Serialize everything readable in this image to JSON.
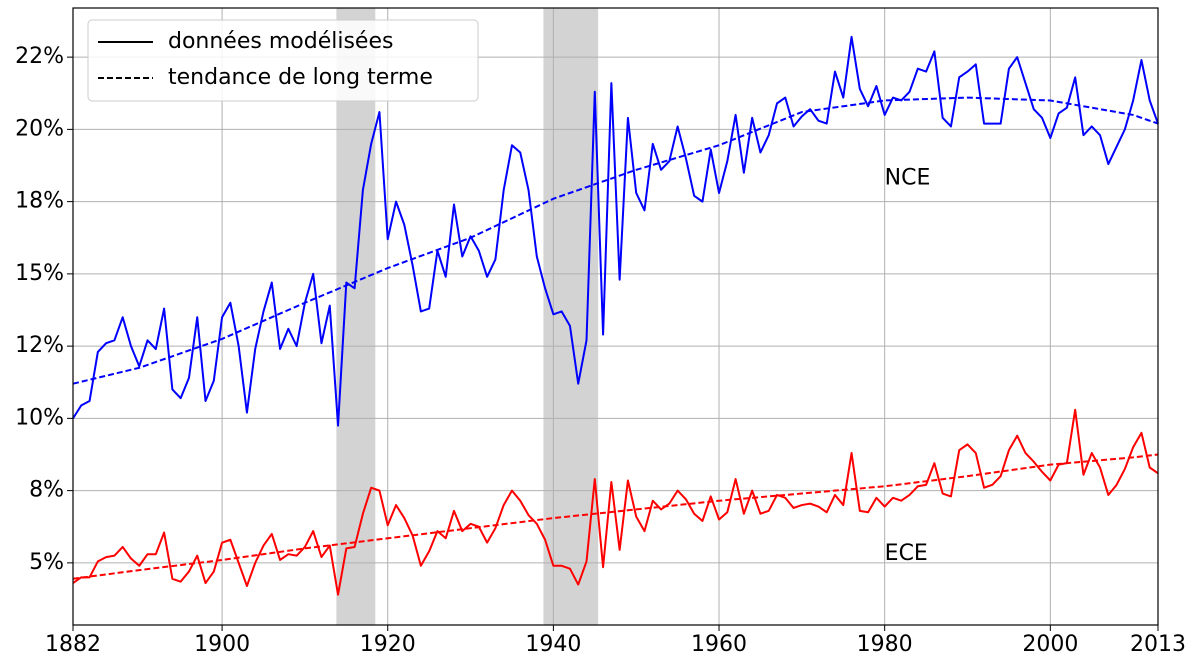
{
  "chart_data": {
    "type": "line",
    "x": [
      1882,
      1883,
      1884,
      1885,
      1886,
      1887,
      1888,
      1889,
      1890,
      1891,
      1892,
      1893,
      1894,
      1895,
      1896,
      1897,
      1898,
      1899,
      1900,
      1901,
      1902,
      1903,
      1904,
      1905,
      1906,
      1907,
      1908,
      1909,
      1910,
      1911,
      1912,
      1913,
      1914,
      1915,
      1916,
      1917,
      1918,
      1919,
      1920,
      1921,
      1922,
      1923,
      1924,
      1925,
      1926,
      1927,
      1928,
      1929,
      1930,
      1931,
      1932,
      1933,
      1934,
      1935,
      1936,
      1937,
      1938,
      1939,
      1940,
      1941,
      1942,
      1943,
      1944,
      1945,
      1946,
      1947,
      1948,
      1949,
      1950,
      1951,
      1952,
      1953,
      1954,
      1955,
      1956,
      1957,
      1958,
      1959,
      1960,
      1961,
      1962,
      1963,
      1964,
      1965,
      1966,
      1967,
      1968,
      1969,
      1970,
      1971,
      1972,
      1973,
      1974,
      1975,
      1976,
      1977,
      1978,
      1979,
      1980,
      1981,
      1982,
      1983,
      1984,
      1985,
      1986,
      1987,
      1988,
      1989,
      1990,
      1991,
      1992,
      1993,
      1994,
      1995,
      1996,
      1997,
      1998,
      1999,
      2000,
      2001,
      2002,
      2003,
      2004,
      2005,
      2006,
      2007,
      2008,
      2009,
      2010,
      2011,
      2012,
      2013
    ],
    "series": [
      {
        "color": "#0000ff",
        "style": "solid",
        "values": [
          10.0,
          10.45,
          10.6,
          12.3,
          12.6,
          12.7,
          13.5,
          12.5,
          11.8,
          12.7,
          12.4,
          13.8,
          11.0,
          10.7,
          11.4,
          13.5,
          10.6,
          11.3,
          13.5,
          14.0,
          12.5,
          10.2,
          12.4,
          13.7,
          14.7,
          12.4,
          13.1,
          12.5,
          14.0,
          15.0,
          12.6,
          13.9,
          9.75,
          14.7,
          14.5,
          17.9,
          19.5,
          20.6,
          16.2,
          17.5,
          16.7,
          15.3,
          13.7,
          13.8,
          15.8,
          14.9,
          17.4,
          15.6,
          16.3,
          15.8,
          14.9,
          15.5,
          17.9,
          19.45,
          19.2,
          17.9,
          15.6,
          14.5,
          13.6,
          13.7,
          13.2,
          11.2,
          12.7,
          21.3,
          12.9,
          21.6,
          14.8,
          20.4,
          17.8,
          17.2,
          19.5,
          18.6,
          18.9,
          20.1,
          19.0,
          17.7,
          17.5,
          19.3,
          17.8,
          18.9,
          20.5,
          18.5,
          20.4,
          19.2,
          19.8,
          20.9,
          21.1,
          20.1,
          20.45,
          20.7,
          20.3,
          20.2,
          22.0,
          21.1,
          23.2,
          21.4,
          20.8,
          21.5,
          20.5,
          21.1,
          21.0,
          21.3,
          22.1,
          22.0,
          22.7,
          20.4,
          20.1,
          21.8,
          22.0,
          22.25,
          20.2,
          20.2,
          20.2,
          22.1,
          22.5,
          21.6,
          20.7,
          20.4,
          19.7,
          20.55,
          20.75,
          21.8,
          19.8,
          20.1,
          19.8,
          18.8,
          19.4,
          20.0,
          21.0,
          22.4,
          21.0,
          20.2
        ]
      },
      {
        "color": "#0000ff",
        "style": "dashed",
        "x": [
          1882,
          1890,
          1900,
          1910,
          1920,
          1930,
          1940,
          1950,
          1960,
          1970,
          1980,
          1990,
          2000,
          2010,
          2013
        ],
        "values": [
          11.2,
          11.75,
          12.75,
          14.0,
          15.2,
          16.25,
          17.6,
          18.6,
          19.45,
          20.6,
          21.0,
          21.1,
          21.0,
          20.5,
          20.2
        ]
      },
      {
        "color": "#ff0000",
        "style": "solid",
        "values": [
          4.3,
          4.5,
          4.5,
          5.05,
          5.2,
          5.25,
          5.55,
          5.15,
          4.9,
          5.3,
          5.3,
          6.05,
          4.45,
          4.35,
          4.7,
          5.25,
          4.3,
          4.7,
          5.7,
          5.8,
          5.0,
          4.2,
          5.0,
          5.6,
          6.0,
          5.1,
          5.3,
          5.25,
          5.55,
          6.1,
          5.2,
          5.6,
          3.9,
          5.5,
          5.55,
          6.7,
          7.6,
          7.5,
          6.3,
          7.0,
          6.55,
          5.95,
          4.9,
          5.4,
          6.1,
          5.85,
          6.8,
          6.1,
          6.35,
          6.25,
          5.7,
          6.2,
          7.0,
          7.5,
          7.15,
          6.65,
          6.35,
          5.8,
          4.9,
          4.9,
          4.8,
          4.25,
          5.05,
          7.9,
          4.85,
          7.8,
          5.45,
          7.85,
          6.6,
          6.1,
          7.15,
          6.85,
          7.05,
          7.5,
          7.2,
          6.7,
          6.45,
          7.3,
          6.5,
          6.75,
          7.9,
          6.7,
          7.5,
          6.7,
          6.8,
          7.35,
          7.25,
          6.9,
          7.0,
          7.05,
          6.95,
          6.75,
          7.35,
          7.0,
          8.8,
          6.8,
          6.75,
          7.25,
          6.95,
          7.25,
          7.15,
          7.35,
          7.65,
          7.7,
          8.45,
          7.4,
          7.3,
          8.9,
          9.1,
          8.8,
          7.6,
          7.7,
          8.0,
          8.9,
          9.4,
          8.8,
          8.5,
          8.15,
          7.85,
          8.4,
          8.45,
          10.3,
          8.05,
          8.8,
          8.3,
          7.35,
          7.7,
          8.25,
          9.0,
          9.5,
          8.3,
          8.1
        ]
      },
      {
        "color": "#ff0000",
        "style": "dashed",
        "x": [
          1882,
          1890,
          1900,
          1910,
          1920,
          1930,
          1940,
          1950,
          1960,
          1970,
          1980,
          1990,
          2000,
          2010,
          2013
        ],
        "values": [
          4.45,
          4.75,
          5.1,
          5.5,
          5.85,
          6.2,
          6.55,
          6.85,
          7.15,
          7.4,
          7.65,
          8.0,
          8.4,
          8.65,
          8.75
        ]
      }
    ],
    "annotations": [
      {
        "text": "NCE",
        "x": 1980,
        "y": 18.3,
        "color": "#0000ff"
      },
      {
        "text": "ECE",
        "x": 1980,
        "y": 5.3,
        "color": "#ff0000"
      }
    ],
    "shaded_spans": [
      [
        1913.8,
        1918.5
      ],
      [
        1938.8,
        1945.4
      ]
    ],
    "shade_color": "#d3d3d3",
    "legend": {
      "loc": "upper left",
      "color": "#000000",
      "entries": [
        {
          "label": "données modélisées",
          "style": "solid"
        },
        {
          "label": "tendance de long terme",
          "style": "dashed"
        }
      ]
    },
    "xlim": [
      1882,
      2013
    ],
    "xticks": [
      1882,
      1900,
      1920,
      1940,
      1960,
      1980,
      2000,
      2013
    ],
    "ylim": [
      2.85,
      24.2
    ],
    "yticks": [
      {
        "value": 5,
        "label": "5%"
      },
      {
        "value": 7.5,
        "label": "8%"
      },
      {
        "value": 10,
        "label": "10%"
      },
      {
        "value": 12.5,
        "label": "12%"
      },
      {
        "value": 15,
        "label": "15%"
      },
      {
        "value": 17.5,
        "label": "18%"
      },
      {
        "value": 20,
        "label": "20%"
      },
      {
        "value": 22.5,
        "label": "22%"
      }
    ],
    "grid": true
  }
}
